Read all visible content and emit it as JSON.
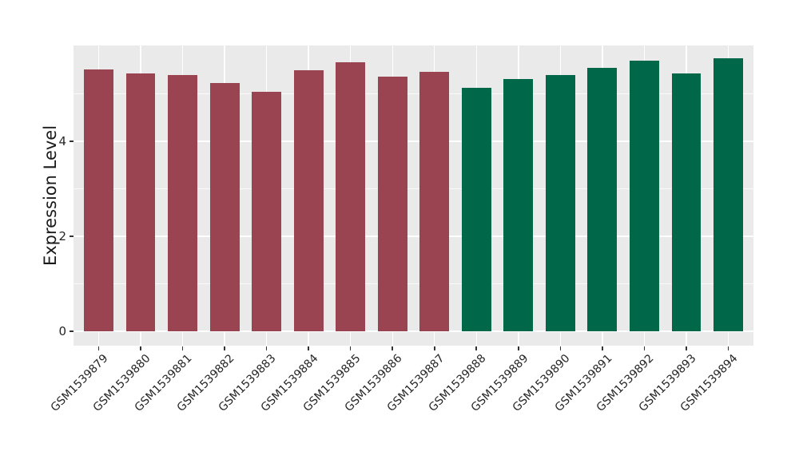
{
  "figure": {
    "background_color": "#ffffff",
    "panel_background_color": "#EAEAEA",
    "gridline_color": "#ffffff",
    "tick_color": "#333333",
    "text_color": "#262626"
  },
  "y_axis": {
    "title": "Expression Level",
    "tick_labels": [
      "0",
      "2",
      "4"
    ]
  },
  "chart_data": {
    "type": "bar",
    "title": "",
    "xlabel": "",
    "ylabel": "Expression Level",
    "legend_position": "none",
    "grid": "white major gridlines at y=0,2,4 and vertical at each category; faint minor gridlines at y=1,3,5; gray panel",
    "ylim": [
      -0.3,
      6.02
    ],
    "yticks": [
      0,
      2,
      4
    ],
    "yminorticks": [
      1,
      3,
      5
    ],
    "categories": [
      "GSM1539879",
      "GSM1539880",
      "GSM1539881",
      "GSM1539882",
      "GSM1539883",
      "GSM1539884",
      "GSM1539885",
      "GSM1539886",
      "GSM1539887",
      "GSM1539888",
      "GSM1539889",
      "GSM1539890",
      "GSM1539891",
      "GSM1539892",
      "GSM1539893",
      "GSM1539894"
    ],
    "values": [
      5.52,
      5.43,
      5.4,
      5.22,
      5.05,
      5.49,
      5.67,
      5.36,
      5.47,
      5.13,
      5.31,
      5.4,
      5.55,
      5.7,
      5.43,
      5.74
    ],
    "bar_colors": [
      "#9A4452",
      "#9A4452",
      "#9A4452",
      "#9A4452",
      "#9A4452",
      "#9A4452",
      "#9A4452",
      "#9A4452",
      "#9A4452",
      "#006848",
      "#006848",
      "#006848",
      "#006848",
      "#006848",
      "#006848",
      "#006848"
    ],
    "color_groups": [
      {
        "color": "#9A4452",
        "first_category": "GSM1539879",
        "last_category": "GSM1539887"
      },
      {
        "color": "#006848",
        "first_category": "GSM1539888",
        "last_category": "GSM1539894"
      }
    ]
  }
}
